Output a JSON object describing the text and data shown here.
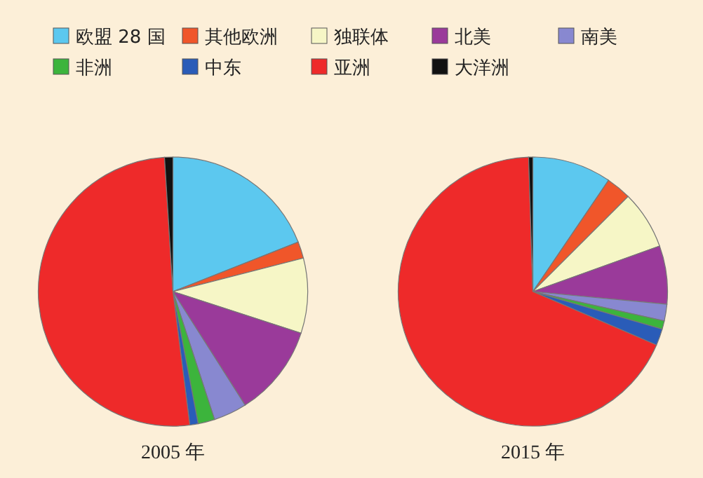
{
  "chart_data": {
    "type": "pie",
    "legend": "top",
    "categories": [
      "欧盟 28 国",
      "其他欧洲",
      "独联体",
      "北美",
      "南美",
      "非洲",
      "中东",
      "亚洲",
      "大洋洲"
    ],
    "colors": [
      "#5cc8ef",
      "#f0562a",
      "#f6f6c6",
      "#9a3a9a",
      "#8888d0",
      "#3cb43c",
      "#2a5cb8",
      "#ee2a2a",
      "#111111"
    ],
    "series": [
      {
        "name": "2005 年",
        "values": [
          19,
          2,
          9,
          11,
          4,
          2,
          1,
          51,
          1
        ]
      },
      {
        "name": "2015 年",
        "values": [
          9.5,
          3,
          7,
          7,
          2,
          1,
          2,
          68,
          0.5
        ]
      }
    ]
  }
}
